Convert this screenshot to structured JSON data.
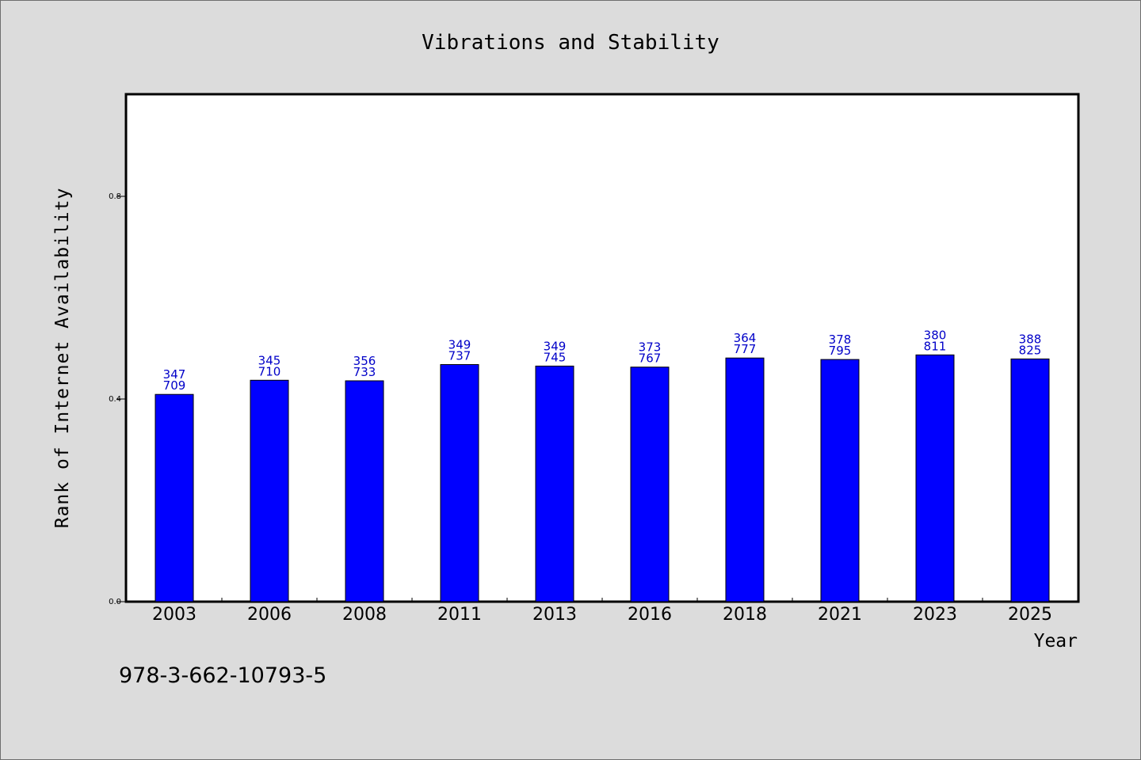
{
  "chart_data": {
    "type": "bar",
    "title": "Vibrations and Stability",
    "xlabel": "Year",
    "ylabel": "Rank of Internet Availability",
    "categories": [
      "2003",
      "2006",
      "2008",
      "2011",
      "2013",
      "2016",
      "2018",
      "2021",
      "2023",
      "2025"
    ],
    "series": [
      {
        "values": [
          0.409,
          0.437,
          0.436,
          0.468,
          0.465,
          0.463,
          0.481,
          0.478,
          0.487,
          0.479
        ],
        "data_labels": [
          [
            "347",
            "709"
          ],
          [
            "345",
            "710"
          ],
          [
            "356",
            "733"
          ],
          [
            "349",
            "737"
          ],
          [
            "349",
            "745"
          ],
          [
            "373",
            "767"
          ],
          [
            "364",
            "777"
          ],
          [
            "378",
            "795"
          ],
          [
            "380",
            "811"
          ],
          [
            "388",
            "825"
          ]
        ],
        "color": "#0000ff"
      }
    ],
    "ylim": [
      0,
      1.0
    ],
    "yticks": [
      0.0,
      0.4,
      0.8
    ],
    "ytick_labels": [
      "0.0",
      "0.4",
      "0.8"
    ],
    "grid": false,
    "legend": "none"
  },
  "footer_text": "978-3-662-10793-5",
  "colors": {
    "background": "#dcdcdc",
    "plot_area": "#ffffff",
    "bar": "#0000ff",
    "data_label": "#0000c8"
  }
}
